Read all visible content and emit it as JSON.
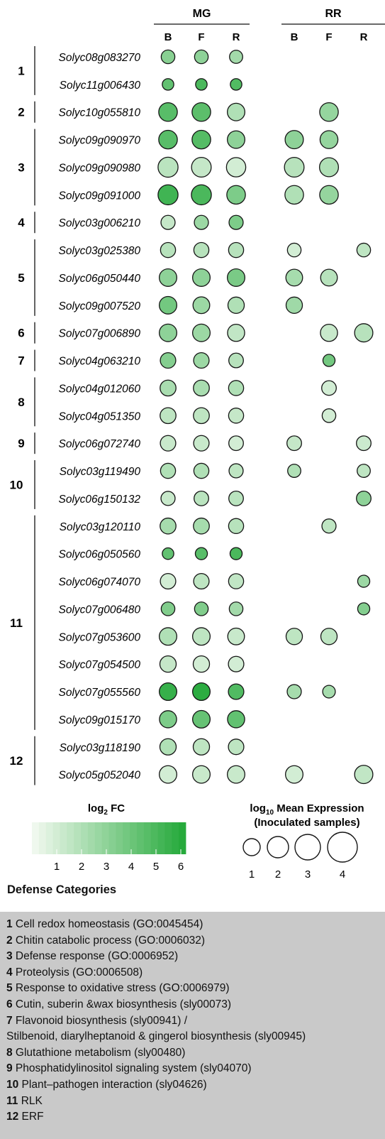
{
  "chart_data": {
    "type": "bubble-matrix",
    "stages": [
      {
        "name": "MG",
        "tissues": [
          "B",
          "F",
          "R"
        ]
      },
      {
        "name": "RR",
        "tissues": [
          "B",
          "F",
          "R"
        ]
      }
    ],
    "groups": [
      {
        "id": "1",
        "genes": [
          {
            "gene": "Solyc08g083270",
            "MG": [
              {
                "fc": 3.2,
                "size": 1.4
              },
              {
                "fc": 3.0,
                "size": 1.4
              },
              {
                "fc": 2.4,
                "size": 1.3
              }
            ],
            "RR": [
              null,
              null,
              null
            ]
          },
          {
            "gene": "Solyc11g006430",
            "MG": [
              {
                "fc": 4.3,
                "size": 1.0
              },
              {
                "fc": 5.0,
                "size": 1.0
              },
              {
                "fc": 4.8,
                "size": 1.0
              }
            ],
            "RR": [
              null,
              null,
              null
            ]
          }
        ]
      },
      {
        "id": "2",
        "genes": [
          {
            "gene": "Solyc10g055810",
            "MG": [
              {
                "fc": 4.6,
                "size": 2.6
              },
              {
                "fc": 4.5,
                "size": 2.6
              },
              {
                "fc": 2.0,
                "size": 2.3
              }
            ],
            "RR": [
              null,
              {
                "fc": 2.8,
                "size": 2.6
              },
              null
            ]
          }
        ]
      },
      {
        "id": "3",
        "genes": [
          {
            "gene": "Solyc09g090970",
            "MG": [
              {
                "fc": 4.6,
                "size": 2.6
              },
              {
                "fc": 4.7,
                "size": 2.6
              },
              {
                "fc": 3.0,
                "size": 2.3
              }
            ],
            "RR": [
              {
                "fc": 3.0,
                "size": 2.5
              },
              {
                "fc": 2.8,
                "size": 2.4
              },
              null
            ]
          },
          {
            "gene": "Solyc09g090980",
            "MG": [
              {
                "fc": 1.7,
                "size": 3.0
              },
              {
                "fc": 1.4,
                "size": 2.9
              },
              {
                "fc": 1.0,
                "size": 2.8
              }
            ],
            "RR": [
              {
                "fc": 1.8,
                "size": 2.9
              },
              {
                "fc": 2.0,
                "size": 2.7
              },
              null
            ]
          },
          {
            "gene": "Solyc09g091000",
            "MG": [
              {
                "fc": 5.3,
                "size": 3.0
              },
              {
                "fc": 5.0,
                "size": 3.0
              },
              {
                "fc": 3.5,
                "size": 2.6
              }
            ],
            "RR": [
              {
                "fc": 2.0,
                "size": 2.6
              },
              {
                "fc": 2.8,
                "size": 2.6
              },
              null
            ]
          }
        ]
      },
      {
        "id": "4",
        "genes": [
          {
            "gene": "Solyc03g006210",
            "MG": [
              {
                "fc": 1.4,
                "size": 1.5
              },
              {
                "fc": 2.6,
                "size": 1.5
              },
              {
                "fc": 3.5,
                "size": 1.5
              }
            ],
            "RR": [
              null,
              null,
              null
            ]
          }
        ]
      },
      {
        "id": "5",
        "genes": [
          {
            "gene": "Solyc03g025380",
            "MG": [
              {
                "fc": 1.8,
                "size": 1.7
              },
              {
                "fc": 1.8,
                "size": 1.7
              },
              {
                "fc": 1.8,
                "size": 1.7
              }
            ],
            "RR": [
              {
                "fc": 1.0,
                "size": 1.4
              },
              null,
              {
                "fc": 1.6,
                "size": 1.4
              }
            ]
          },
          {
            "gene": "Solyc06g050440",
            "MG": [
              {
                "fc": 3.0,
                "size": 2.3
              },
              {
                "fc": 3.0,
                "size": 2.3
              },
              {
                "fc": 3.6,
                "size": 2.3
              }
            ],
            "RR": [
              {
                "fc": 2.3,
                "size": 2.1
              },
              {
                "fc": 1.8,
                "size": 2.1
              },
              null
            ]
          },
          {
            "gene": "Solyc09g007520",
            "MG": [
              {
                "fc": 3.8,
                "size": 2.3
              },
              {
                "fc": 2.6,
                "size": 2.1
              },
              {
                "fc": 2.0,
                "size": 2.0
              }
            ],
            "RR": [
              {
                "fc": 2.5,
                "size": 2.0
              },
              null,
              null
            ]
          }
        ]
      },
      {
        "id": "6",
        "genes": [
          {
            "gene": "Solyc07g006890",
            "MG": [
              {
                "fc": 3.0,
                "size": 2.3
              },
              {
                "fc": 2.6,
                "size": 2.3
              },
              {
                "fc": 1.5,
                "size": 2.2
              }
            ],
            "RR": [
              null,
              {
                "fc": 1.3,
                "size": 2.2
              },
              {
                "fc": 1.8,
                "size": 2.5
              }
            ]
          }
        ]
      },
      {
        "id": "7",
        "genes": [
          {
            "gene": "Solyc04g063210",
            "MG": [
              {
                "fc": 3.3,
                "size": 1.8
              },
              {
                "fc": 2.6,
                "size": 1.8
              },
              {
                "fc": 1.8,
                "size": 1.6
              }
            ],
            "RR": [
              null,
              {
                "fc": 3.8,
                "size": 1.1
              },
              null
            ]
          }
        ]
      },
      {
        "id": "8",
        "genes": [
          {
            "gene": "Solyc04g012060",
            "MG": [
              {
                "fc": 2.2,
                "size": 1.9
              },
              {
                "fc": 2.2,
                "size": 1.9
              },
              {
                "fc": 2.0,
                "size": 1.7
              }
            ],
            "RR": [
              null,
              {
                "fc": 1.0,
                "size": 1.6
              },
              null
            ]
          },
          {
            "gene": "Solyc04g051350",
            "MG": [
              {
                "fc": 1.6,
                "size": 1.9
              },
              {
                "fc": 1.6,
                "size": 1.9
              },
              {
                "fc": 1.4,
                "size": 1.7
              }
            ],
            "RR": [
              null,
              {
                "fc": 1.0,
                "size": 1.4
              },
              null
            ]
          }
        ]
      },
      {
        "id": "9",
        "genes": [
          {
            "gene": "Solyc06g072740",
            "MG": [
              {
                "fc": 1.3,
                "size": 1.8
              },
              {
                "fc": 1.3,
                "size": 1.8
              },
              {
                "fc": 1.0,
                "size": 1.6
              }
            ],
            "RR": [
              {
                "fc": 1.4,
                "size": 1.6
              },
              null,
              {
                "fc": 1.2,
                "size": 1.6
              }
            ]
          }
        ]
      },
      {
        "id": "10",
        "genes": [
          {
            "gene": "Solyc03g119490",
            "MG": [
              {
                "fc": 2.0,
                "size": 1.7
              },
              {
                "fc": 2.0,
                "size": 1.7
              },
              {
                "fc": 1.6,
                "size": 1.5
              }
            ],
            "RR": [
              {
                "fc": 2.0,
                "size": 1.3
              },
              null,
              {
                "fc": 1.6,
                "size": 1.3
              }
            ]
          },
          {
            "gene": "Solyc06g150132",
            "MG": [
              {
                "fc": 1.3,
                "size": 1.5
              },
              {
                "fc": 1.7,
                "size": 1.6
              },
              {
                "fc": 1.7,
                "size": 1.6
              }
            ],
            "RR": [
              null,
              null,
              {
                "fc": 3.0,
                "size": 1.6
              }
            ]
          }
        ]
      },
      {
        "id": "11",
        "genes": [
          {
            "gene": "Solyc03g120110",
            "MG": [
              {
                "fc": 2.3,
                "size": 1.9
              },
              {
                "fc": 2.3,
                "size": 1.9
              },
              {
                "fc": 1.8,
                "size": 1.7
              }
            ],
            "RR": [
              null,
              {
                "fc": 1.6,
                "size": 1.5
              },
              null
            ]
          },
          {
            "gene": "Solyc06g050560",
            "MG": [
              {
                "fc": 4.3,
                "size": 1.0
              },
              {
                "fc": 4.6,
                "size": 1.1
              },
              {
                "fc": 5.0,
                "size": 1.1
              }
            ],
            "RR": [
              null,
              null,
              null
            ]
          },
          {
            "gene": "Solyc06g074070",
            "MG": [
              {
                "fc": 1.0,
                "size": 1.8
              },
              {
                "fc": 1.6,
                "size": 1.8
              },
              {
                "fc": 1.5,
                "size": 1.7
              }
            ],
            "RR": [
              null,
              null,
              {
                "fc": 2.6,
                "size": 1.1
              }
            ]
          },
          {
            "gene": "Solyc07g006480",
            "MG": [
              {
                "fc": 3.4,
                "size": 1.4
              },
              {
                "fc": 3.4,
                "size": 1.4
              },
              {
                "fc": 2.4,
                "size": 1.4
              }
            ],
            "RR": [
              null,
              null,
              {
                "fc": 3.3,
                "size": 1.1
              }
            ]
          },
          {
            "gene": "Solyc07g053600",
            "MG": [
              {
                "fc": 2.0,
                "size": 2.3
              },
              {
                "fc": 1.6,
                "size": 2.3
              },
              {
                "fc": 1.3,
                "size": 2.1
              }
            ],
            "RR": [
              {
                "fc": 1.6,
                "size": 2.0
              },
              {
                "fc": 1.6,
                "size": 2.0
              },
              null
            ]
          },
          {
            "gene": "Solyc07g054500",
            "MG": [
              {
                "fc": 1.4,
                "size": 2.0
              },
              {
                "fc": 1.0,
                "size": 2.0
              },
              {
                "fc": 1.0,
                "size": 1.8
              }
            ],
            "RR": [
              null,
              null,
              null
            ]
          },
          {
            "gene": "Solyc07g055560",
            "MG": [
              {
                "fc": 5.6,
                "size": 2.3
              },
              {
                "fc": 5.9,
                "size": 2.3
              },
              {
                "fc": 4.8,
                "size": 1.8
              }
            ],
            "RR": [
              {
                "fc": 2.3,
                "size": 1.5
              },
              {
                "fc": 2.3,
                "size": 1.2
              },
              null
            ]
          },
          {
            "gene": "Solyc09g015170",
            "MG": [
              {
                "fc": 3.5,
                "size": 2.2
              },
              {
                "fc": 4.2,
                "size": 2.3
              },
              {
                "fc": 4.3,
                "size": 2.2
              }
            ],
            "RR": [
              null,
              null,
              null
            ]
          }
        ]
      },
      {
        "id": "12",
        "genes": [
          {
            "gene": "Solyc03g118190",
            "MG": [
              {
                "fc": 2.0,
                "size": 2.0
              },
              {
                "fc": 1.6,
                "size": 2.0
              },
              {
                "fc": 1.6,
                "size": 1.8
              }
            ],
            "RR": [
              null,
              null,
              null
            ]
          },
          {
            "gene": "Solyc05g052040",
            "MG": [
              {
                "fc": 1.0,
                "size": 2.3
              },
              {
                "fc": 1.3,
                "size": 2.3
              },
              {
                "fc": 1.3,
                "size": 2.3
              }
            ],
            "RR": [
              {
                "fc": 1.0,
                "size": 2.3
              },
              null,
              {
                "fc": 1.5,
                "size": 2.5
              }
            ]
          }
        ]
      }
    ],
    "color_legend": {
      "title_main": "log",
      "title_sub": "2",
      "title_rest": " FC",
      "ticks": [
        1,
        2,
        3,
        4,
        5,
        6
      ],
      "range": [
        0,
        6.2
      ],
      "color_low": "#f4faf2",
      "color_high": "#22a838"
    },
    "size_legend": {
      "title_main": "log",
      "title_sub": "10",
      "title_rest": " Mean Expression",
      "title_line2": "(Inoculated samples)",
      "ticks": [
        1,
        2,
        3,
        4
      ]
    },
    "categories_title": "Defense Categories",
    "categories": [
      {
        "num": "1",
        "text": " Cell redox homeostasis (GO:0045454)"
      },
      {
        "num": "2",
        "text": " Chitin catabolic process (GO:0006032)"
      },
      {
        "num": "3",
        "text": " Defense response (GO:0006952)"
      },
      {
        "num": "4",
        "text": " Proteolysis (GO:0006508)"
      },
      {
        "num": "5",
        "text": " Response to oxidative stress (GO:0006979)"
      },
      {
        "num": "6",
        "text": " Cutin, suberin &wax biosynthesis (sly00073)"
      },
      {
        "num": "7",
        "text": " Flavonoid biosynthesis (sly00941) /"
      },
      {
        "num": "",
        "text": "Stilbenoid, diarylheptanoid & gingerol biosynthesis (sly00945)"
      },
      {
        "num": "8",
        "text": " Glutathione metabolism (sly00480)"
      },
      {
        "num": "9",
        "text": " Phosphatidylinositol signaling system (sly04070)"
      },
      {
        "num": "10",
        "text": " Plant–pathogen interaction (sly04626)"
      },
      {
        "num": "11",
        "text": " RLK"
      },
      {
        "num": "12",
        "text": " ERF"
      }
    ]
  }
}
